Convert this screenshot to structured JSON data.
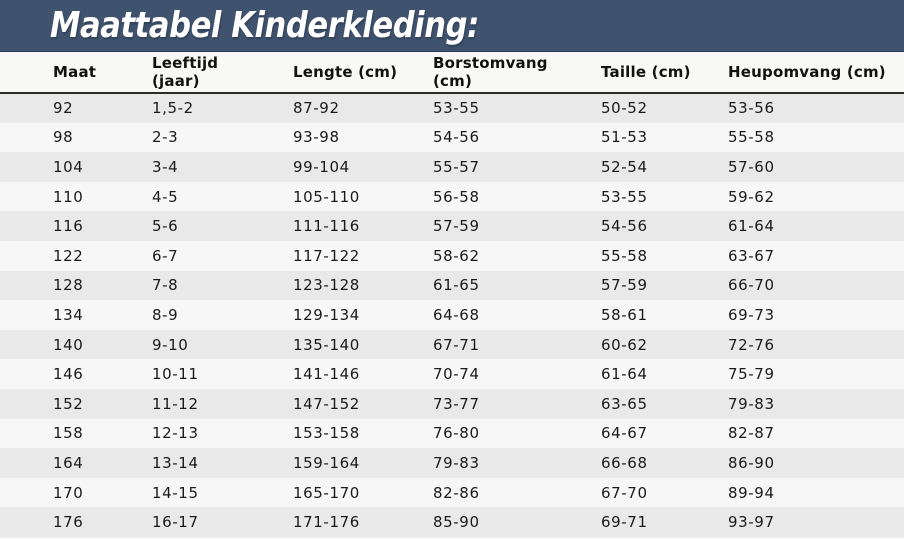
{
  "title": "Maattabel Kinderkleding:",
  "colors": {
    "title_bar_bg": "#40536e",
    "title_text": "#ffffff",
    "header_row_bg": "#f8f8f6",
    "row_odd_bg": "#e9e9e9",
    "row_even_bg": "#f7f7f7",
    "header_divider": "#2b2b2b",
    "body_text": "#1a1a1a"
  },
  "chart_data": {
    "type": "table",
    "title": "Maattabel Kinderkleding:",
    "columns": [
      "Maat",
      "Leeftijd (jaar)",
      "Lengte (cm)",
      "Borstomvang (cm)",
      "Taille (cm)",
      "Heupomvang (cm)"
    ],
    "rows": [
      [
        "92",
        "1,5-2",
        "87-92",
        "53-55",
        "50-52",
        "53-56"
      ],
      [
        "98",
        "2-3",
        "93-98",
        "54-56",
        "51-53",
        "55-58"
      ],
      [
        "104",
        "3-4",
        "99-104",
        "55-57",
        "52-54",
        "57-60"
      ],
      [
        "110",
        "4-5",
        "105-110",
        "56-58",
        "53-55",
        "59-62"
      ],
      [
        "116",
        "5-6",
        "111-116",
        "57-59",
        "54-56",
        "61-64"
      ],
      [
        "122",
        "6-7",
        "117-122",
        "58-62",
        "55-58",
        "63-67"
      ],
      [
        "128",
        "7-8",
        "123-128",
        "61-65",
        "57-59",
        "66-70"
      ],
      [
        "134",
        "8-9",
        "129-134",
        "64-68",
        "58-61",
        "69-73"
      ],
      [
        "140",
        "9-10",
        "135-140",
        "67-71",
        "60-62",
        "72-76"
      ],
      [
        "146",
        "10-11",
        "141-146",
        "70-74",
        "61-64",
        "75-79"
      ],
      [
        "152",
        "11-12",
        "147-152",
        "73-77",
        "63-65",
        "79-83"
      ],
      [
        "158",
        "12-13",
        "153-158",
        "76-80",
        "64-67",
        "82-87"
      ],
      [
        "164",
        "13-14",
        "159-164",
        "79-83",
        "66-68",
        "86-90"
      ],
      [
        "170",
        "14-15",
        "165-170",
        "82-86",
        "67-70",
        "89-94"
      ],
      [
        "176",
        "16-17",
        "171-176",
        "85-90",
        "69-71",
        "93-97"
      ]
    ]
  }
}
